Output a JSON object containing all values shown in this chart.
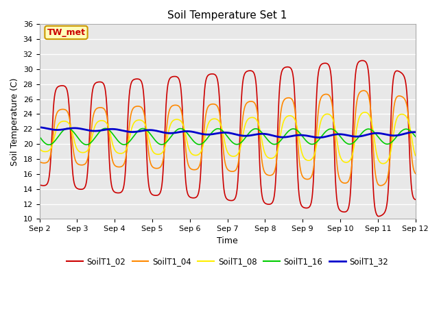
{
  "title": "Soil Temperature Set 1",
  "xlabel": "Time",
  "ylabel": "Soil Temperature (C)",
  "ylim": [
    10,
    36
  ],
  "yticks": [
    10,
    12,
    14,
    16,
    18,
    20,
    22,
    24,
    26,
    28,
    30,
    32,
    34,
    36
  ],
  "xtick_labels": [
    "Sep 2",
    "Sep 3",
    "Sep 4",
    "Sep 5",
    "Sep 6",
    "Sep 7",
    "Sep 8",
    "Sep 9",
    "Sep 10",
    "Sep 11",
    "Sep 12"
  ],
  "plot_bg_color": "#e8e8e8",
  "fig_bg_color": "#ffffff",
  "series_colors": {
    "SoilT1_02": "#cc0000",
    "SoilT1_04": "#ff8800",
    "SoilT1_08": "#ffee00",
    "SoilT1_16": "#00cc00",
    "SoilT1_32": "#0000cc"
  },
  "annotation_text": "TW_met",
  "annotation_color": "#cc0000",
  "annotation_bg": "#ffffbb",
  "annotation_border": "#cc9900",
  "linewidth_thin": 1.2,
  "linewidth_thick": 2.0
}
